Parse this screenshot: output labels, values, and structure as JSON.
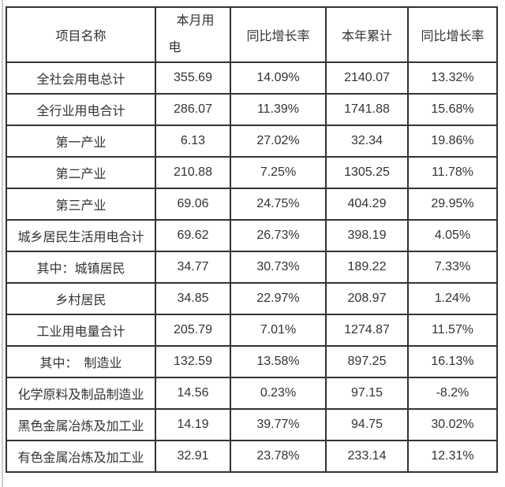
{
  "table": {
    "columns": [
      "项目名称",
      "本月用电",
      "同比增长率",
      "本年累计",
      "同比增长率"
    ],
    "rows": [
      {
        "name": "全社会用电总计",
        "month": "355.69",
        "month_yoy": "14.09%",
        "ytd": "2140.07",
        "ytd_yoy": "13.32%"
      },
      {
        "name": "全行业用电合计",
        "month": "286.07",
        "month_yoy": "11.39%",
        "ytd": "1741.88",
        "ytd_yoy": "15.68%"
      },
      {
        "name": "第一产业",
        "month": "6.13",
        "month_yoy": "27.02%",
        "ytd": "32.34",
        "ytd_yoy": "19.86%"
      },
      {
        "name": "第二产业",
        "month": "210.88",
        "month_yoy": "7.25%",
        "ytd": "1305.25",
        "ytd_yoy": "11.78%"
      },
      {
        "name": "第三产业",
        "month": "69.06",
        "month_yoy": "24.75%",
        "ytd": "404.29",
        "ytd_yoy": "29.95%"
      },
      {
        "name": "城乡居民生活用电合计",
        "month": "69.62",
        "month_yoy": "26.73%",
        "ytd": "398.19",
        "ytd_yoy": "4.05%"
      },
      {
        "name": "其中：城镇居民",
        "month": "34.77",
        "month_yoy": "30.73%",
        "ytd": "189.22",
        "ytd_yoy": "7.33%"
      },
      {
        "name": "乡村居民",
        "month": "34.85",
        "month_yoy": "22.97%",
        "ytd": "208.97",
        "ytd_yoy": "1.24%"
      },
      {
        "name": "工业用电量合计",
        "month": "205.79",
        "month_yoy": "7.01%",
        "ytd": "1274.87",
        "ytd_yoy": "11.57%"
      },
      {
        "name": "其中：　制造业",
        "month": "132.59",
        "month_yoy": "13.58%",
        "ytd": "897.25",
        "ytd_yoy": "16.13%"
      },
      {
        "name": "化学原料及制品制造业",
        "month": "14.56",
        "month_yoy": "0.23%",
        "ytd": "97.15",
        "ytd_yoy": "-8.2%"
      },
      {
        "name": "黑色金属冶炼及加工业",
        "month": "14.19",
        "month_yoy": "39.77%",
        "ytd": "94.75",
        "ytd_yoy": "30.02%"
      },
      {
        "name": "有色金属冶炼及加工业",
        "month": "32.91",
        "month_yoy": "23.78%",
        "ytd": "233.14",
        "ytd_yoy": "12.31%"
      }
    ]
  },
  "colors": {
    "border": "#333333",
    "text": "#333333",
    "page_stripe": "#cccccc"
  }
}
